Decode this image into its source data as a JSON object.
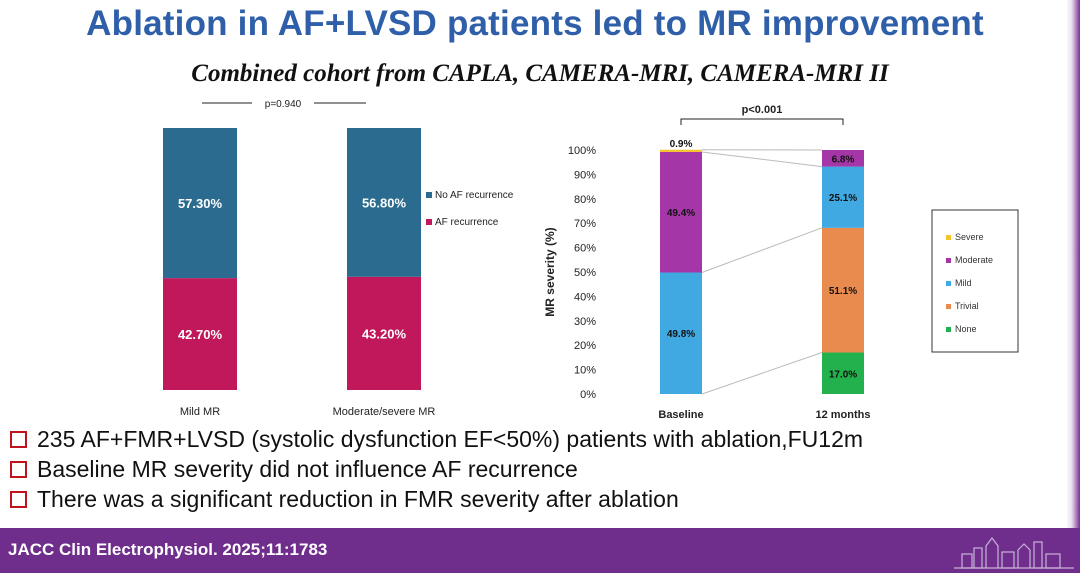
{
  "slide": {
    "title": "Ablation in AF+LVSD patients led to MR improvement",
    "subtitle": "Combined cohort from CAPLA, CAMERA-MRI, CAMERA-MRI II",
    "bullets": [
      "235 AF+FMR+LVSD (systolic dysfunction EF<50%) patients with ablation,FU12m",
      "Baseline MR severity did not influence AF recurrence",
      "There was a significant reduction in FMR severity after ablation"
    ],
    "footer": {
      "citation": "JACC Clin Electrophysiol. 2025;11:1783",
      "decoration_icon": "city-skyline-icon"
    }
  },
  "chart_data": [
    {
      "type": "bar",
      "stacked": true,
      "title": "",
      "annotation": "p=0.940",
      "categories": [
        "Mild MR",
        "Moderate/severe MR"
      ],
      "series": [
        {
          "name": "AF recurrence",
          "values": [
            42.7,
            43.2
          ],
          "labels": [
            "42.70%",
            "43.20%"
          ],
          "color": "#c0185a"
        },
        {
          "name": "No AF recurrence",
          "values": [
            57.3,
            56.8
          ],
          "labels": [
            "57.30%",
            "56.80%"
          ],
          "color": "#2a6b8f"
        }
      ],
      "legend": {
        "position": "right",
        "entries": [
          "No AF recurrence",
          "AF recurrence"
        ]
      },
      "xlabel": "",
      "ylabel": "",
      "ylim": [
        0,
        100
      ]
    },
    {
      "type": "bar",
      "stacked": true,
      "title": "",
      "annotation": "p<0.001",
      "categories": [
        "Baseline",
        "12 months"
      ],
      "series": [
        {
          "name": "None",
          "values": [
            0,
            17.0
          ],
          "labels": [
            "",
            "17.0%"
          ],
          "color": "#22b14c"
        },
        {
          "name": "Trivial",
          "values": [
            0,
            51.1
          ],
          "labels": [
            "",
            "51.1%"
          ],
          "color": "#e98b4e"
        },
        {
          "name": "Mild",
          "values": [
            49.8,
            25.1
          ],
          "labels": [
            "49.8%",
            "25.1%"
          ],
          "color": "#41a9e1"
        },
        {
          "name": "Moderate",
          "values": [
            49.4,
            6.8
          ],
          "labels": [
            "49.4%",
            "6.8%"
          ],
          "color": "#a436a8"
        },
        {
          "name": "Severe",
          "values": [
            0.9,
            0
          ],
          "labels": [
            "0.9%",
            ""
          ],
          "color": "#f5c32c"
        }
      ],
      "legend": {
        "position": "right",
        "entries": [
          "Severe",
          "Moderate",
          "Mild",
          "Trivial",
          "None"
        ]
      },
      "yticks": [
        "0%",
        "10%",
        "20%",
        "30%",
        "40%",
        "50%",
        "60%",
        "70%",
        "80%",
        "90%",
        "100%"
      ],
      "xlabel": "",
      "ylabel": "MR severity (%)",
      "ylim": [
        0,
        100
      ]
    }
  ]
}
